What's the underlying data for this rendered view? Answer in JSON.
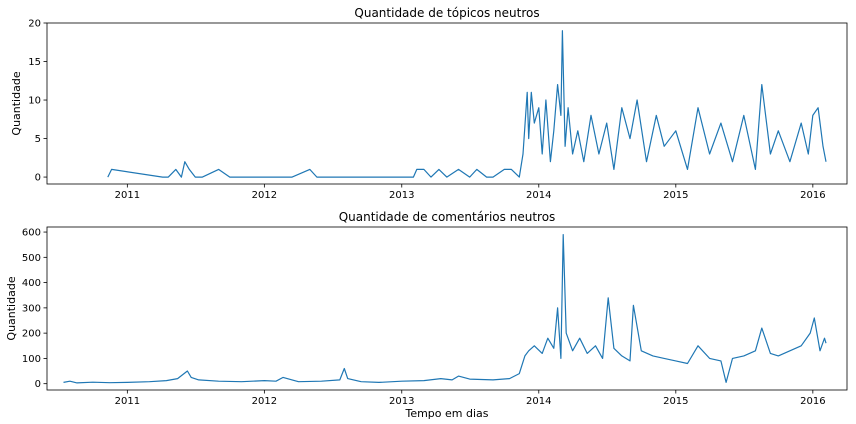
{
  "chart_data": [
    {
      "type": "line",
      "title": "Quantidade de tópicos neutros",
      "xlabel": "",
      "ylabel": "Quantidade",
      "x_ticks": [
        "2011",
        "2012",
        "2013",
        "2014",
        "2015",
        "2016"
      ],
      "y_ticks": [
        0,
        5,
        10,
        15,
        20
      ],
      "xlim": [
        "2010-06-01",
        "2016-04-01"
      ],
      "ylim": [
        -0.9,
        20
      ],
      "grid": false,
      "color": "#1f77b4",
      "series": [
        {
          "description": "daily counts (sampled)",
          "x": [
            "2010-11-10",
            "2010-11-20",
            "2011-04-05",
            "2011-04-20",
            "2011-05-10",
            "2011-05-25",
            "2011-06-03",
            "2011-06-15",
            "2011-07-01",
            "2011-07-20",
            "2011-09-01",
            "2011-10-01",
            "2011-12-20",
            "2012-02-01",
            "2012-03-15",
            "2012-05-01",
            "2012-05-20",
            "2012-06-15",
            "2012-09-01",
            "2012-11-01",
            "2013-02-01",
            "2013-02-10",
            "2013-03-01",
            "2013-03-20",
            "2013-04-10",
            "2013-05-01",
            "2013-06-01",
            "2013-07-01",
            "2013-07-20",
            "2013-08-15",
            "2013-09-01",
            "2013-10-01",
            "2013-10-20",
            "2013-11-10",
            "2013-11-20",
            "2013-12-01",
            "2013-12-05",
            "2013-12-12",
            "2013-12-20",
            "2014-01-01",
            "2014-01-10",
            "2014-01-20",
            "2014-02-01",
            "2014-02-10",
            "2014-02-20",
            "2014-03-01",
            "2014-03-05",
            "2014-03-12",
            "2014-03-20",
            "2014-04-01",
            "2014-04-15",
            "2014-05-01",
            "2014-05-20",
            "2014-06-10",
            "2014-07-01",
            "2014-07-20",
            "2014-08-10",
            "2014-09-01",
            "2014-09-20",
            "2014-10-15",
            "2014-11-10",
            "2014-12-01",
            "2015-01-01",
            "2015-02-01",
            "2015-03-01",
            "2015-04-01",
            "2015-05-01",
            "2015-06-01",
            "2015-07-01",
            "2015-08-01",
            "2015-08-18",
            "2015-09-10",
            "2015-10-01",
            "2015-11-01",
            "2015-12-01",
            "2015-12-20",
            "2016-01-01",
            "2016-01-15",
            "2016-01-28",
            "2016-02-05"
          ],
          "y": [
            0,
            1,
            0,
            0,
            1,
            0,
            2,
            1,
            0,
            0,
            1,
            0,
            0,
            0,
            0,
            1,
            0,
            0,
            0,
            0,
            0,
            1,
            1,
            0,
            1,
            0,
            1,
            0,
            1,
            0,
            0,
            1,
            1,
            0,
            3,
            11,
            5,
            11,
            7,
            9,
            3,
            10,
            2,
            6,
            12,
            8,
            19,
            4,
            9,
            3,
            6,
            2,
            8,
            3,
            7,
            1,
            9,
            5,
            10,
            2,
            8,
            4,
            6,
            1,
            9,
            3,
            7,
            2,
            8,
            1,
            12,
            3,
            6,
            2,
            7,
            3,
            8,
            9,
            4,
            2
          ]
        }
      ]
    },
    {
      "type": "line",
      "title": "Quantidade de comentários neutros",
      "xlabel": "Tempo em dias",
      "ylabel": "Quantidade",
      "x_ticks": [
        "2011",
        "2012",
        "2013",
        "2014",
        "2015",
        "2016"
      ],
      "y_ticks": [
        0,
        100,
        200,
        300,
        400,
        500,
        600
      ],
      "xlim": [
        "2010-06-01",
        "2016-04-01"
      ],
      "ylim": [
        -25,
        620
      ],
      "grid": false,
      "color": "#1f77b4",
      "series": [
        {
          "description": "daily counts (sampled)",
          "x": [
            "2010-07-15",
            "2010-08-01",
            "2010-08-20",
            "2010-10-01",
            "2010-11-15",
            "2011-01-01",
            "2011-03-01",
            "2011-04-15",
            "2011-05-15",
            "2011-06-10",
            "2011-06-20",
            "2011-07-10",
            "2011-09-01",
            "2011-11-01",
            "2012-01-01",
            "2012-02-01",
            "2012-02-20",
            "2012-04-01",
            "2012-06-01",
            "2012-07-20",
            "2012-08-01",
            "2012-08-10",
            "2012-09-15",
            "2012-11-01",
            "2013-01-01",
            "2013-03-01",
            "2013-04-15",
            "2013-05-15",
            "2013-06-01",
            "2013-07-01",
            "2013-09-01",
            "2013-10-15",
            "2013-11-10",
            "2013-11-25",
            "2013-12-05",
            "2013-12-20",
            "2014-01-10",
            "2014-01-25",
            "2014-02-10",
            "2014-02-20",
            "2014-03-01",
            "2014-03-07",
            "2014-03-15",
            "2014-04-01",
            "2014-04-20",
            "2014-05-10",
            "2014-06-01",
            "2014-06-20",
            "2014-07-05",
            "2014-07-20",
            "2014-08-10",
            "2014-09-01",
            "2014-09-10",
            "2014-10-01",
            "2014-11-01",
            "2014-12-01",
            "2015-01-01",
            "2015-02-01",
            "2015-03-01",
            "2015-04-01",
            "2015-05-01",
            "2015-05-15",
            "2015-06-01",
            "2015-07-01",
            "2015-08-01",
            "2015-08-18",
            "2015-09-10",
            "2015-10-01",
            "2015-11-01",
            "2015-12-01",
            "2015-12-25",
            "2016-01-05",
            "2016-01-20",
            "2016-02-01",
            "2016-02-05"
          ],
          "y": [
            5,
            10,
            3,
            6,
            4,
            5,
            8,
            12,
            20,
            50,
            25,
            15,
            10,
            8,
            12,
            10,
            25,
            8,
            10,
            15,
            60,
            20,
            8,
            5,
            10,
            12,
            20,
            15,
            30,
            18,
            15,
            20,
            40,
            110,
            130,
            150,
            120,
            180,
            140,
            300,
            100,
            590,
            200,
            130,
            180,
            120,
            150,
            100,
            340,
            140,
            110,
            90,
            310,
            130,
            110,
            100,
            90,
            80,
            150,
            100,
            90,
            5,
            100,
            110,
            130,
            220,
            120,
            110,
            130,
            150,
            200,
            260,
            130,
            180,
            160
          ]
        }
      ]
    }
  ]
}
